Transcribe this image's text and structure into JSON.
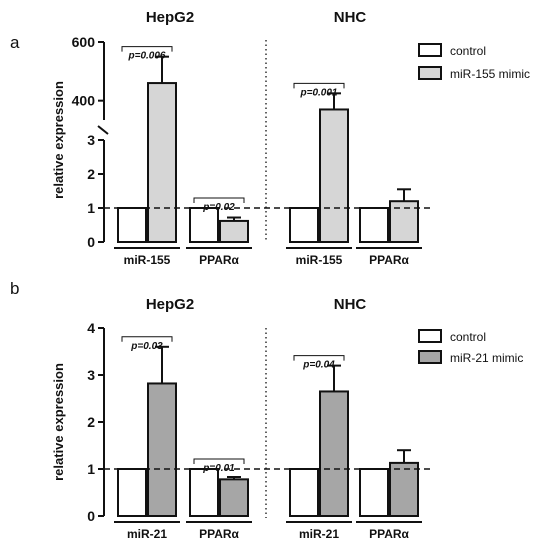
{
  "chart_data": [
    {
      "type": "bar",
      "panel_label": "a",
      "ylabel": "relative expression",
      "y_lower_ticks": [
        "0",
        "1",
        "2",
        "3"
      ],
      "y_upper_ticks": [
        "400",
        "600"
      ],
      "ylim_lower": [
        0,
        3
      ],
      "ylim_upper": [
        300,
        600
      ],
      "reference_line": 1,
      "legend": {
        "position": "top-right",
        "entries": [
          "control",
          "miR-155 mimic"
        ]
      },
      "series_colors": {
        "control": "#ffffff",
        "mimic": "#d6d6d6"
      },
      "groups": [
        {
          "title": "HepG2",
          "items": [
            {
              "label": "miR-155",
              "values": [
                1,
                460
              ],
              "errors": [
                0,
                90
              ],
              "pvalue": "p=0.006"
            },
            {
              "label": "PPARα",
              "values": [
                1,
                0.62
              ],
              "errors": [
                0,
                0.1
              ],
              "pvalue": "p=0.02"
            }
          ]
        },
        {
          "title": "NHC",
          "items": [
            {
              "label": "miR-155",
              "values": [
                1,
                370
              ],
              "errors": [
                0,
                55
              ],
              "pvalue": "p=0.001"
            },
            {
              "label": "PPARα",
              "values": [
                1,
                1.2
              ],
              "errors": [
                0,
                0.35
              ],
              "pvalue": ""
            }
          ]
        }
      ]
    },
    {
      "type": "bar",
      "panel_label": "b",
      "ylabel": "relative expression",
      "y_ticks": [
        "0",
        "1",
        "2",
        "3",
        "4"
      ],
      "ylim": [
        0,
        4
      ],
      "reference_line": 1,
      "legend": {
        "position": "top-right",
        "entries": [
          "control",
          "miR-21 mimic"
        ]
      },
      "series_colors": {
        "control": "#ffffff",
        "mimic": "#a6a6a6"
      },
      "groups": [
        {
          "title": "HepG2",
          "items": [
            {
              "label": "miR-21",
              "values": [
                1,
                2.82
              ],
              "errors": [
                0,
                0.78
              ],
              "pvalue": "p=0.03"
            },
            {
              "label": "PPARα",
              "values": [
                1,
                0.78
              ],
              "errors": [
                0,
                0.05
              ],
              "pvalue": "p=0.01"
            }
          ]
        },
        {
          "title": "NHC",
          "items": [
            {
              "label": "miR-21",
              "values": [
                1,
                2.65
              ],
              "errors": [
                0,
                0.55
              ],
              "pvalue": "p=0.04"
            },
            {
              "label": "PPARα",
              "values": [
                1,
                1.13
              ],
              "errors": [
                0,
                0.27
              ],
              "pvalue": ""
            }
          ]
        }
      ]
    }
  ]
}
